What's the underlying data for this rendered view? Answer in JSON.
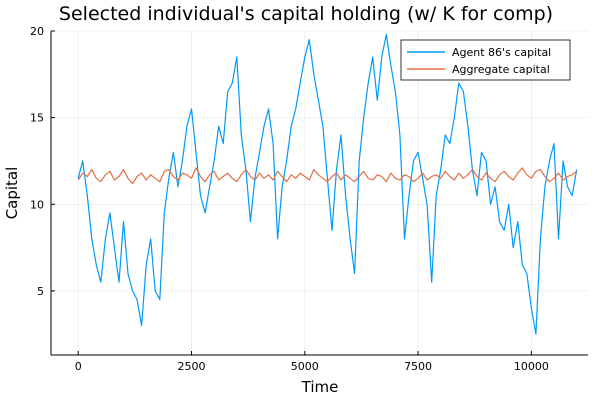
{
  "chart_data": {
    "type": "line",
    "title": "Selected individual's capital holding (w/ K for comp)",
    "xlabel": "Time",
    "ylabel": "Capital",
    "xlim": [
      -600,
      11250
    ],
    "ylim": [
      1.3,
      20.0
    ],
    "xticks": [
      0,
      2500,
      5000,
      7500,
      10000
    ],
    "yticks": [
      5,
      10,
      15,
      20
    ],
    "grid": true,
    "legend_position": "top-right",
    "series": [
      {
        "name": "Agent 86's capital",
        "color": "#009af9",
        "x": [
          0,
          100,
          200,
          300,
          400,
          500,
          600,
          700,
          800,
          900,
          1000,
          1100,
          1200,
          1300,
          1400,
          1500,
          1600,
          1700,
          1800,
          1900,
          2000,
          2100,
          2200,
          2300,
          2400,
          2500,
          2600,
          2700,
          2800,
          2900,
          3000,
          3100,
          3200,
          3300,
          3400,
          3500,
          3600,
          3700,
          3800,
          3900,
          4000,
          4100,
          4200,
          4300,
          4400,
          4500,
          4600,
          4700,
          4800,
          4900,
          5000,
          5100,
          5200,
          5300,
          5400,
          5500,
          5600,
          5700,
          5800,
          5900,
          6000,
          6100,
          6200,
          6300,
          6400,
          6500,
          6600,
          6700,
          6800,
          6900,
          7000,
          7100,
          7200,
          7300,
          7400,
          7500,
          7600,
          7700,
          7800,
          7900,
          8000,
          8100,
          8200,
          8300,
          8400,
          8500,
          8600,
          8700,
          8800,
          8900,
          9000,
          9100,
          9200,
          9300,
          9400,
          9500,
          9600,
          9700,
          9800,
          9900,
          10000,
          10100,
          10200,
          10300,
          10400,
          10500,
          10600,
          10700,
          10800,
          10900,
          11000
        ],
        "y": [
          11.5,
          12.5,
          10.5,
          8.0,
          6.5,
          5.5,
          8.0,
          9.5,
          7.5,
          5.5,
          9.0,
          6.0,
          5.0,
          4.5,
          3.0,
          6.5,
          8.0,
          5.0,
          4.5,
          9.5,
          11.5,
          13.0,
          11.0,
          12.5,
          14.5,
          15.5,
          13.0,
          10.5,
          9.5,
          11.0,
          12.5,
          14.5,
          13.5,
          16.5,
          17.0,
          18.5,
          14.0,
          12.0,
          9.0,
          11.5,
          13.0,
          14.5,
          15.5,
          13.5,
          8.0,
          11.0,
          12.5,
          14.5,
          15.5,
          17.0,
          18.5,
          19.5,
          17.5,
          16.0,
          14.5,
          11.5,
          8.5,
          12.0,
          14.0,
          10.5,
          8.0,
          6.0,
          12.5,
          15.0,
          17.0,
          18.5,
          16.0,
          18.5,
          19.8,
          18.0,
          16.5,
          14.0,
          8.0,
          10.5,
          12.5,
          13.0,
          11.5,
          10.0,
          5.5,
          10.5,
          12.0,
          14.0,
          13.5,
          15.0,
          17.0,
          16.5,
          14.5,
          12.0,
          10.5,
          13.0,
          12.5,
          10.0,
          11.0,
          9.0,
          8.5,
          10.0,
          7.5,
          9.0,
          6.5,
          6.0,
          4.0,
          2.5,
          8.0,
          11.0,
          12.5,
          13.5,
          8.0,
          12.5,
          11.0,
          10.5,
          12.0
        ]
      },
      {
        "name": "Aggregate capital",
        "color": "#e26f46",
        "x": [
          0,
          100,
          200,
          300,
          400,
          500,
          600,
          700,
          800,
          900,
          1000,
          1100,
          1200,
          1300,
          1400,
          1500,
          1600,
          1700,
          1800,
          1900,
          2000,
          2100,
          2200,
          2300,
          2400,
          2500,
          2600,
          2700,
          2800,
          2900,
          3000,
          3100,
          3200,
          3300,
          3400,
          3500,
          3600,
          3700,
          3800,
          3900,
          4000,
          4100,
          4200,
          4300,
          4400,
          4500,
          4600,
          4700,
          4800,
          4900,
          5000,
          5100,
          5200,
          5300,
          5400,
          5500,
          5600,
          5700,
          5800,
          5900,
          6000,
          6100,
          6200,
          6300,
          6400,
          6500,
          6600,
          6700,
          6800,
          6900,
          7000,
          7100,
          7200,
          7300,
          7400,
          7500,
          7600,
          7700,
          7800,
          7900,
          8000,
          8100,
          8200,
          8300,
          8400,
          8500,
          8600,
          8700,
          8800,
          8900,
          9000,
          9100,
          9200,
          9300,
          9400,
          9500,
          9600,
          9700,
          9800,
          9900,
          10000,
          10100,
          10200,
          10300,
          10400,
          10500,
          10600,
          10700,
          10800,
          10900,
          11000
        ],
        "y": [
          11.4,
          11.8,
          11.6,
          12.0,
          11.5,
          11.3,
          11.7,
          11.9,
          11.4,
          11.6,
          12.0,
          11.5,
          11.2,
          11.6,
          11.8,
          11.4,
          11.7,
          11.5,
          11.3,
          11.9,
          12.0,
          11.6,
          11.4,
          11.8,
          11.7,
          11.5,
          12.1,
          11.6,
          11.3,
          11.7,
          11.9,
          11.4,
          11.6,
          11.8,
          11.5,
          11.3,
          11.7,
          12.0,
          11.6,
          11.4,
          11.8,
          11.5,
          11.7,
          11.4,
          11.9,
          11.6,
          11.3,
          11.7,
          11.5,
          11.8,
          11.6,
          11.4,
          12.0,
          11.7,
          11.5,
          11.3,
          11.6,
          11.8,
          11.4,
          11.7,
          11.5,
          11.3,
          11.6,
          11.9,
          11.5,
          11.4,
          11.7,
          11.6,
          11.3,
          11.8,
          11.5,
          11.4,
          11.7,
          11.6,
          11.3,
          11.5,
          11.8,
          11.4,
          11.6,
          11.7,
          11.5,
          11.9,
          11.6,
          11.4,
          11.8,
          11.5,
          11.7,
          12.0,
          11.6,
          11.4,
          11.8,
          11.5,
          11.3,
          11.7,
          11.9,
          11.6,
          11.4,
          11.8,
          12.1,
          11.7,
          11.5,
          11.9,
          12.0,
          11.6,
          11.3,
          11.5,
          11.8,
          11.4,
          11.6,
          11.7,
          11.9
        ]
      }
    ]
  }
}
